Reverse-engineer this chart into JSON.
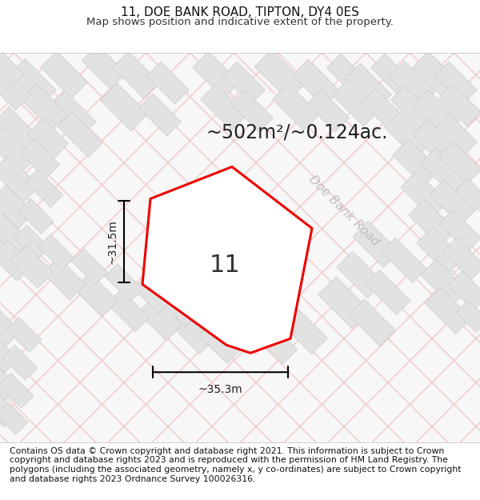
{
  "title_line1": "11, DOE BANK ROAD, TIPTON, DY4 0ES",
  "title_line2": "Map shows position and indicative extent of the property.",
  "area_text": "~502m²/~0.124ac.",
  "road_label": "Doe Bank Road",
  "number_label": "11",
  "dim_width": "~35.3m",
  "dim_height": "~31.5m",
  "footer_text": "Contains OS data © Crown copyright and database right 2021. This information is subject to Crown copyright and database rights 2023 and is reproduced with the permission of HM Land Registry. The polygons (including the associated geometry, namely x, y co-ordinates) are subject to Crown copyright and database rights 2023 Ordnance Survey 100026316.",
  "bg_color": "#ffffff",
  "road_color_light": "#f2c8c8",
  "block_color": "#e2e2e2",
  "block_stroke": "#cccccc",
  "property_stroke": "#ee0000",
  "title_fontsize": 11,
  "subtitle_fontsize": 9.5,
  "area_fontsize": 17,
  "dim_fontsize": 10,
  "road_label_fontsize": 11,
  "number_fontsize": 22,
  "footer_fontsize": 7.8
}
